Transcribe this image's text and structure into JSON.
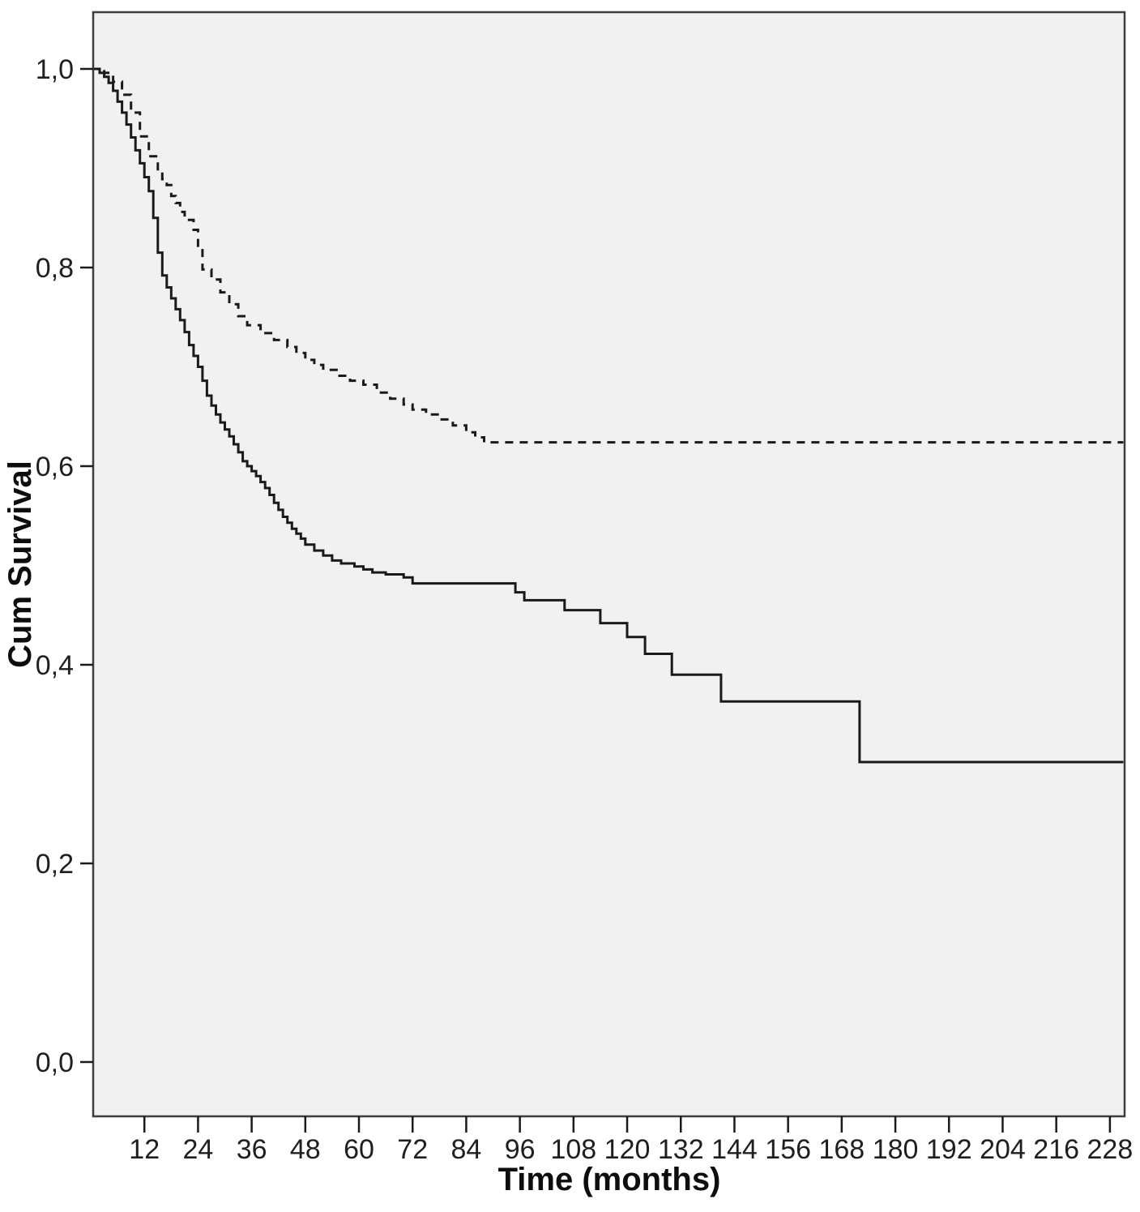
{
  "chart_data": {
    "type": "line",
    "subtype": "kaplan-meier-step-function",
    "title": "",
    "xlabel": "Time (months)",
    "ylabel": "Cum Survival",
    "decimal_separator": ",",
    "grid": "off",
    "legend": "none",
    "plot_background_color": "#f1f1f1",
    "curve_color": "#1a1a1a",
    "xlim": [
      0,
      231
    ],
    "ylim": [
      0.0,
      1.0
    ],
    "x_ticks": [
      12,
      24,
      36,
      48,
      60,
      72,
      84,
      96,
      108,
      120,
      132,
      144,
      156,
      168,
      180,
      192,
      204,
      216,
      228
    ],
    "y_ticks": [
      {
        "label": "1,0",
        "value": 1.0
      },
      {
        "label": "0,8",
        "value": 0.8
      },
      {
        "label": "0,6",
        "value": 0.6
      },
      {
        "label": "0,4",
        "value": 0.4
      },
      {
        "label": "0,2",
        "value": 0.2
      },
      {
        "label": "0,0",
        "value": 0.0
      }
    ],
    "series": [
      {
        "name": "solid-curve-group",
        "style": "solid",
        "color": "#1a1a1a",
        "points": [
          [
            0,
            1.0
          ],
          [
            2,
            0.996
          ],
          [
            3,
            0.992
          ],
          [
            4,
            0.986
          ],
          [
            5,
            0.978
          ],
          [
            6,
            0.967
          ],
          [
            7,
            0.956
          ],
          [
            8,
            0.944
          ],
          [
            9,
            0.931
          ],
          [
            10,
            0.918
          ],
          [
            11,
            0.905
          ],
          [
            12,
            0.891
          ],
          [
            13,
            0.877
          ],
          [
            14,
            0.85
          ],
          [
            15,
            0.815
          ],
          [
            16,
            0.792
          ],
          [
            17,
            0.78
          ],
          [
            18,
            0.769
          ],
          [
            19,
            0.758
          ],
          [
            20,
            0.747
          ],
          [
            21,
            0.735
          ],
          [
            22,
            0.722
          ],
          [
            23,
            0.711
          ],
          [
            24,
            0.7
          ],
          [
            25,
            0.686
          ],
          [
            26,
            0.671
          ],
          [
            27,
            0.661
          ],
          [
            28,
            0.652
          ],
          [
            29,
            0.644
          ],
          [
            30,
            0.637
          ],
          [
            31,
            0.63
          ],
          [
            32,
            0.622
          ],
          [
            33,
            0.614
          ],
          [
            34,
            0.605
          ],
          [
            35,
            0.6
          ],
          [
            36,
            0.595
          ],
          [
            37,
            0.59
          ],
          [
            38,
            0.584
          ],
          [
            39,
            0.578
          ],
          [
            40,
            0.571
          ],
          [
            41,
            0.563
          ],
          [
            42,
            0.556
          ],
          [
            43,
            0.549
          ],
          [
            44,
            0.543
          ],
          [
            45,
            0.537
          ],
          [
            46,
            0.532
          ],
          [
            47,
            0.527
          ],
          [
            48,
            0.521
          ],
          [
            50,
            0.515
          ],
          [
            52,
            0.51
          ],
          [
            54,
            0.505
          ],
          [
            56,
            0.502
          ],
          [
            59,
            0.499
          ],
          [
            61,
            0.496
          ],
          [
            63,
            0.493
          ],
          [
            66,
            0.491
          ],
          [
            70,
            0.488
          ],
          [
            72,
            0.482
          ],
          [
            95,
            0.473
          ],
          [
            97,
            0.465
          ],
          [
            106,
            0.455
          ],
          [
            114,
            0.442
          ],
          [
            120,
            0.428
          ],
          [
            124,
            0.411
          ],
          [
            130,
            0.39
          ],
          [
            141,
            0.363
          ],
          [
            172,
            0.302
          ],
          [
            231,
            0.302
          ]
        ]
      },
      {
        "name": "dashed-curve-group",
        "style": "dashed",
        "color": "#1a1a1a",
        "points": [
          [
            0,
            1.0
          ],
          [
            3,
            0.996
          ],
          [
            5,
            0.987
          ],
          [
            7,
            0.974
          ],
          [
            9,
            0.956
          ],
          [
            11,
            0.932
          ],
          [
            13,
            0.912
          ],
          [
            15,
            0.896
          ],
          [
            16,
            0.889
          ],
          [
            17,
            0.883
          ],
          [
            18,
            0.872
          ],
          [
            19,
            0.865
          ],
          [
            20,
            0.856
          ],
          [
            21,
            0.848
          ],
          [
            23,
            0.838
          ],
          [
            24,
            0.82
          ],
          [
            25,
            0.798
          ],
          [
            27,
            0.788
          ],
          [
            29,
            0.775
          ],
          [
            31,
            0.763
          ],
          [
            33,
            0.751
          ],
          [
            35,
            0.742
          ],
          [
            38,
            0.734
          ],
          [
            41,
            0.727
          ],
          [
            44,
            0.72
          ],
          [
            46,
            0.714
          ],
          [
            48,
            0.707
          ],
          [
            50,
            0.702
          ],
          [
            52,
            0.697
          ],
          [
            55,
            0.691
          ],
          [
            58,
            0.686
          ],
          [
            61,
            0.682
          ],
          [
            64,
            0.674
          ],
          [
            67,
            0.668
          ],
          [
            70,
            0.662
          ],
          [
            72,
            0.657
          ],
          [
            75,
            0.652
          ],
          [
            78,
            0.647
          ],
          [
            81,
            0.641
          ],
          [
            84,
            0.634
          ],
          [
            86,
            0.629
          ],
          [
            88,
            0.624
          ],
          [
            231,
            0.624
          ]
        ]
      }
    ]
  }
}
